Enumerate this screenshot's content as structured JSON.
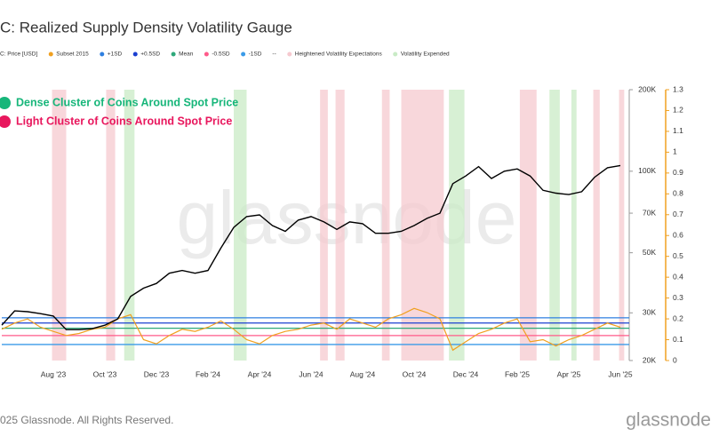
{
  "chart_data": {
    "type": "line",
    "title": "C: Realized Supply Density Volatility Gauge",
    "watermark": "glassnode",
    "logo": "glassnode",
    "footer": "025 Glassnode. All Rights Reserved.",
    "annotations": [
      {
        "text": "Dense Cluster of Coins Around Spot Price",
        "color": "#17b67a"
      },
      {
        "text": "Light Cluster of Coins Around Spot Price",
        "color": "#e8175d"
      }
    ],
    "categories": [
      null,
      null,
      null,
      null,
      "Aug '23",
      null,
      null,
      null,
      "Oct '23",
      null,
      null,
      null,
      "Dec '23",
      null,
      null,
      null,
      "Feb '24",
      null,
      null,
      null,
      "Apr '24",
      null,
      null,
      null,
      "Jun '24",
      null,
      null,
      null,
      "Aug '24",
      null,
      null,
      null,
      "Oct '24",
      null,
      null,
      null,
      "Dec '24",
      null,
      null,
      null,
      "Feb '25",
      null,
      null,
      null,
      "Apr '25",
      null,
      null,
      null,
      "Jun '25"
    ],
    "series": [
      {
        "name": "C: Price [USD]",
        "color": "#000000",
        "axis": "y",
        "values": [
          27000,
          30500,
          30300,
          29800,
          29200,
          26000,
          26000,
          26200,
          27000,
          28500,
          34500,
          37000,
          38500,
          42000,
          43000,
          42000,
          43000,
          52000,
          62000,
          68000,
          69000,
          63000,
          60000,
          66000,
          68000,
          65000,
          61000,
          65000,
          64000,
          59000,
          59000,
          60000,
          63000,
          67000,
          70000,
          90000,
          96000,
          104000,
          94000,
          100000,
          102000,
          96000,
          85000,
          83000,
          82000,
          84000,
          95000,
          103000,
          105000
        ]
      },
      {
        "name": "Subset 2015",
        "color": "#f0a020",
        "axis": "y2",
        "values": [
          0.15,
          0.18,
          0.2,
          0.16,
          0.14,
          0.12,
          0.13,
          0.15,
          0.16,
          0.2,
          0.22,
          0.1,
          0.08,
          0.12,
          0.15,
          0.14,
          0.16,
          0.19,
          0.15,
          0.1,
          0.08,
          0.12,
          0.14,
          0.15,
          0.17,
          0.18,
          0.15,
          0.2,
          0.18,
          0.16,
          0.2,
          0.22,
          0.25,
          0.23,
          0.2,
          0.05,
          0.09,
          0.13,
          0.15,
          0.18,
          0.2,
          0.09,
          0.1,
          0.07,
          0.1,
          0.12,
          0.15,
          0.18,
          0.16
        ]
      }
    ],
    "levels": [
      {
        "name": "+1SD",
        "color": "#2e7fe0",
        "value": 0.205
      },
      {
        "name": "+0.5SD",
        "color": "#1a3fd0",
        "value": 0.18
      },
      {
        "name": "Mean",
        "color": "#2ea87a",
        "value": 0.155
      },
      {
        "name": "-0.5SD",
        "color": "#ff5a8a",
        "value": 0.12
      },
      {
        "name": "-1SD",
        "color": "#3b9be8",
        "value": 0.077
      }
    ],
    "legend_separator": "--",
    "bands": [
      {
        "name": "Heightened Volatility Expectations",
        "color": "#f6c9cf",
        "ranges": [
          [
            3.9,
            5.0
          ],
          [
            8.1,
            8.8
          ],
          [
            24.7,
            25.3
          ],
          [
            25.9,
            26.6
          ],
          [
            29.5,
            30.1
          ],
          [
            31.0,
            34.3
          ],
          [
            40.2,
            41.5
          ],
          [
            45.9,
            46.4
          ],
          [
            47.9,
            48.3
          ]
        ]
      },
      {
        "name": "Volatility Expended",
        "color": "#c9ebc6",
        "ranges": [
          [
            9.5,
            10.3
          ],
          [
            18.0,
            19.0
          ],
          [
            34.7,
            35.9
          ],
          [
            42.5,
            43.3
          ],
          [
            44.2,
            44.6
          ]
        ]
      }
    ],
    "log_scale": true,
    "ylim": [
      20000,
      200000
    ],
    "yticks": [
      {
        "value": 200000,
        "label": "200K"
      },
      {
        "value": 100000,
        "label": "100K"
      },
      {
        "value": 70000,
        "label": "70K"
      },
      {
        "value": 50000,
        "label": "50K"
      },
      {
        "value": 30000,
        "label": "30K"
      },
      {
        "value": 20000,
        "label": "20K"
      }
    ],
    "y2lim": [
      0,
      1.3
    ],
    "y2ticks": [
      0,
      0.1,
      0.2,
      0.3,
      0.4,
      0.5,
      0.6,
      0.7,
      0.8,
      0.9,
      1,
      1.1,
      1.2,
      1.3
    ],
    "y2_color": "#f0a020"
  }
}
